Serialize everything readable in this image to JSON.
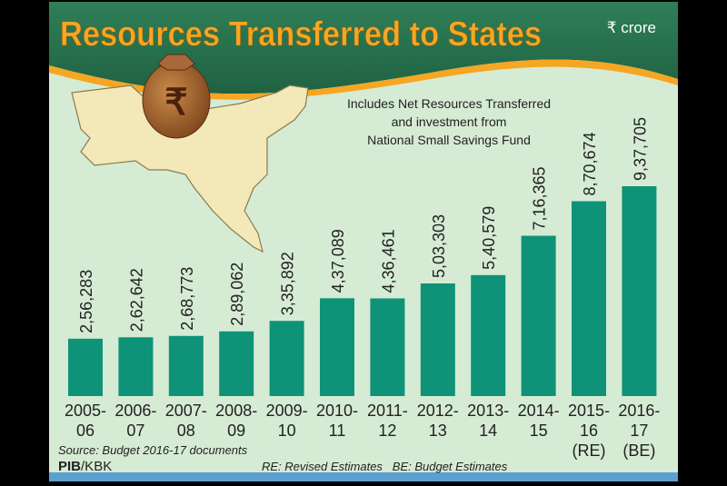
{
  "header": {
    "title": "Resources Transferred to States",
    "unit": "₹ crore"
  },
  "note_lines": [
    "Includes Net Resources Transferred",
    "and investment from",
    "National Small Savings Fund"
  ],
  "footer": {
    "source": "Source: Budget 2016-17 documents",
    "credit_bold": "PIB",
    "credit_rest": "/KBK",
    "legend": "RE: Revised Estimates   BE: Budget Estimates"
  },
  "colors": {
    "bar": "#0e9378",
    "header": "#27714c",
    "title": "#f5a623",
    "background": "#d8ecd6",
    "bag": "#9a5a2a"
  },
  "chart_data": {
    "type": "bar",
    "title": "Resources Transferred to States",
    "ylabel": "₹ crore",
    "xlabel": "",
    "ylim": [
      0,
      937705
    ],
    "grid": false,
    "categories": [
      [
        "2005-",
        "06"
      ],
      [
        "2006-",
        "07"
      ],
      [
        "2007-",
        "08"
      ],
      [
        "2008-",
        "09"
      ],
      [
        "2009-",
        "10"
      ],
      [
        "2010-",
        "11"
      ],
      [
        "2011-",
        "12"
      ],
      [
        "2012-",
        "13"
      ],
      [
        "2013-",
        "14"
      ],
      [
        "2014-",
        "15"
      ],
      [
        "2015-",
        "16",
        "(RE)"
      ],
      [
        "2016-",
        "17",
        "(BE)"
      ]
    ],
    "values": [
      256283,
      262642,
      268773,
      289062,
      335892,
      437089,
      436461,
      503303,
      540579,
      716365,
      870674,
      937705
    ],
    "value_labels": [
      "2,56,283",
      "2,62,642",
      "2,68,773",
      "2,89,062",
      "3,35,892",
      "4,37,089",
      "4,36,461",
      "5,03,303",
      "5,40,579",
      "7,16,365",
      "8,70,674",
      "9,37,705"
    ]
  }
}
